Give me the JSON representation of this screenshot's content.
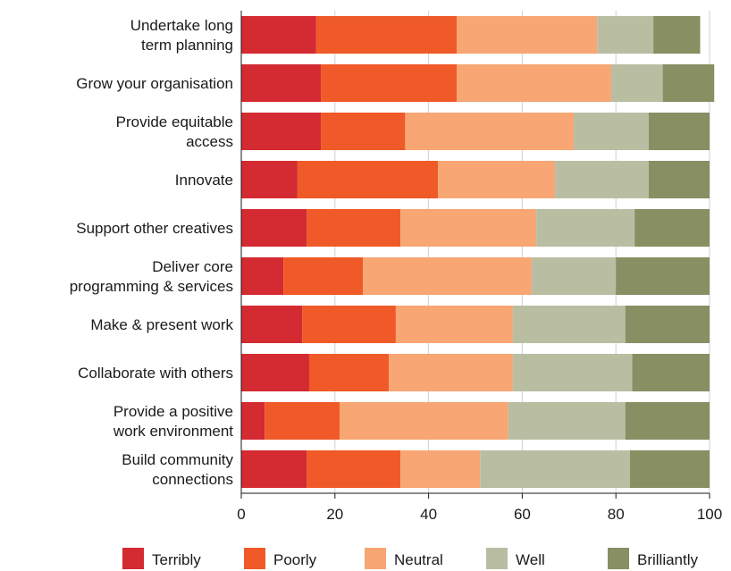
{
  "chart_data": {
    "type": "bar",
    "orientation": "horizontal",
    "stacked": true,
    "categories": [
      "Undertake long\nterm planning",
      "Grow your organisation",
      "Provide equitable\naccess",
      "Innovate",
      "Support other creatives",
      "Deliver core\nprogramming & services",
      "Make & present work",
      "Collaborate with others",
      "Provide a positive\nwork environment",
      "Build community\nconnections"
    ],
    "series": [
      {
        "name": "Terribly",
        "color": "#d42a31",
        "values": [
          16,
          17,
          17,
          12,
          14,
          9,
          13,
          14.5,
          5,
          14
        ]
      },
      {
        "name": "Poorly",
        "color": "#f05a28",
        "values": [
          30,
          29,
          18,
          30,
          20,
          17,
          20,
          17,
          16,
          20
        ]
      },
      {
        "name": "Neutral",
        "color": "#f7a674",
        "values": [
          30,
          33,
          36,
          25,
          29,
          36,
          25,
          26.5,
          36,
          17
        ]
      },
      {
        "name": "Well",
        "color": "#b9bea2",
        "values": [
          12,
          11,
          16,
          20,
          21,
          18,
          24,
          25.5,
          25,
          32
        ]
      },
      {
        "name": "Brilliantly",
        "color": "#878f63",
        "values": [
          10,
          11,
          13,
          13,
          16,
          20,
          18,
          16.5,
          18,
          17
        ]
      }
    ],
    "xlim": [
      0,
      100
    ],
    "xticks": [
      0,
      20,
      40,
      60,
      80,
      100
    ],
    "title": "",
    "xlabel": "",
    "ylabel": "",
    "grid": "vertical",
    "legend_position": "bottom"
  }
}
